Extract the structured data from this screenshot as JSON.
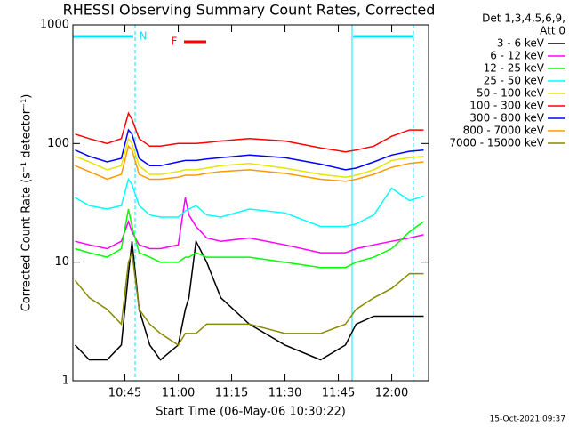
{
  "chart_data": {
    "type": "line",
    "title": "RHESSI Observing Summary Count Rates, Corrected",
    "x_label": "Start Time (06-May-06 10:30:22)",
    "y_label": "Corrected Count Rate (s⁻¹ detector⁻¹)",
    "legend_header": [
      "Det 1,3,4,5,6,9,",
      "Att 0"
    ],
    "annotations": [
      "N",
      "F"
    ],
    "footer": "15-Oct-2021 09:37",
    "log_y": true,
    "xlim": [
      "10:30:22",
      "12:10:22"
    ],
    "xticks": [
      "10:45",
      "11:00",
      "11:15",
      "11:30",
      "11:45",
      "12:00"
    ],
    "ylim": [
      1,
      1000
    ],
    "yticks": [
      1,
      10,
      100,
      1000
    ],
    "x": [
      "10:31",
      "10:35",
      "10:40",
      "10:44",
      "10:46",
      "10:47",
      "10:49",
      "10:52",
      "10:55",
      "11:00",
      "11:02",
      "11:03",
      "11:05",
      "11:08",
      "11:12",
      "11:20",
      "11:30",
      "11:40",
      "11:47",
      "11:50",
      "11:55",
      "12:00",
      "12:05",
      "12:09"
    ],
    "series": [
      {
        "name": "3 - 6 keV",
        "color": "#000000",
        "values": [
          2,
          1.5,
          1.5,
          2,
          8,
          15,
          4,
          2,
          1.5,
          2,
          4,
          5,
          15,
          10,
          5,
          3,
          2,
          1.5,
          2,
          3,
          3.5,
          3.5,
          3.5,
          3.5
        ]
      },
      {
        "name": "6 - 12 keV",
        "color": "#ff00ff",
        "values": [
          15,
          14,
          13,
          15,
          22,
          18,
          14,
          13,
          13,
          14,
          35,
          25,
          20,
          16,
          15,
          16,
          14,
          12,
          12,
          13,
          14,
          15,
          16,
          17
        ]
      },
      {
        "name": "12 - 25 keV",
        "color": "#00ff00",
        "values": [
          13,
          12,
          11,
          13,
          28,
          20,
          12,
          11,
          10,
          10,
          11,
          11,
          12,
          11,
          11,
          11,
          10,
          9,
          9,
          10,
          11,
          13,
          18,
          22
        ]
      },
      {
        "name": "25 - 50 keV",
        "color": "#00ffff",
        "values": [
          35,
          30,
          28,
          30,
          50,
          45,
          30,
          25,
          24,
          24,
          27,
          28,
          30,
          25,
          24,
          28,
          26,
          20,
          20,
          21,
          25,
          42,
          33,
          36
        ]
      },
      {
        "name": "50 - 100 keV",
        "color": "#e6e600",
        "values": [
          78,
          70,
          60,
          65,
          110,
          100,
          65,
          55,
          55,
          58,
          60,
          60,
          60,
          62,
          65,
          68,
          62,
          55,
          52,
          54,
          60,
          72,
          76,
          78
        ]
      },
      {
        "name": "100 - 300 keV",
        "color": "#ff0000",
        "values": [
          120,
          110,
          100,
          110,
          180,
          160,
          110,
          95,
          95,
          100,
          100,
          100,
          100,
          102,
          105,
          110,
          105,
          92,
          85,
          88,
          95,
          115,
          130,
          130
        ]
      },
      {
        "name": "300 - 800 keV",
        "color": "#0000ff",
        "values": [
          88,
          78,
          70,
          75,
          130,
          120,
          75,
          65,
          65,
          70,
          72,
          72,
          72,
          74,
          76,
          80,
          76,
          67,
          60,
          62,
          70,
          80,
          86,
          88
        ]
      },
      {
        "name": "800 - 7000 keV",
        "color": "#ff9900",
        "values": [
          65,
          58,
          50,
          55,
          95,
          88,
          55,
          50,
          50,
          52,
          54,
          54,
          54,
          56,
          58,
          60,
          56,
          50,
          48,
          50,
          55,
          63,
          68,
          70
        ]
      },
      {
        "name": "7000 - 15000 keV",
        "color": "#8a8a00",
        "values": [
          7,
          5,
          4,
          3,
          10,
          12,
          4,
          3,
          2.5,
          2,
          2.5,
          2.5,
          2.5,
          3,
          3,
          3,
          2.5,
          2.5,
          3,
          4,
          5,
          6,
          8,
          8
        ]
      }
    ]
  }
}
